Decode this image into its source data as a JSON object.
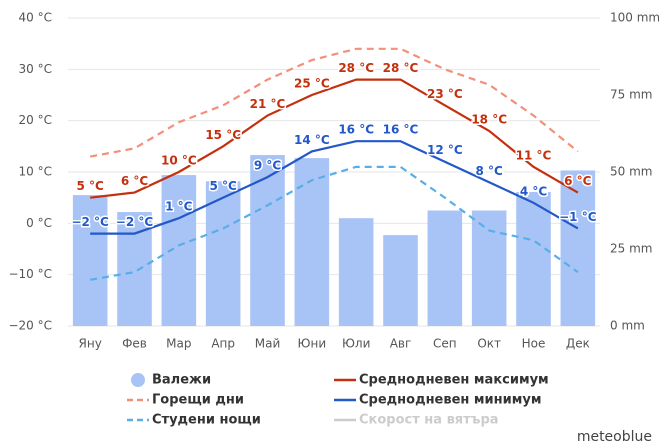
{
  "chart_data": {
    "type": "combo",
    "categories": [
      "Яну",
      "Фев",
      "Мар",
      "Апр",
      "Май",
      "Юни",
      "Юли",
      "Авг",
      "Сеп",
      "Окт",
      "Ное",
      "Дек"
    ],
    "ylim": [
      -20,
      40
    ],
    "yticks": [
      {
        "value": -20,
        "label": "−20 °C"
      },
      {
        "value": -10,
        "label": "−10 °C"
      },
      {
        "value": 0,
        "label": "0 °C"
      },
      {
        "value": 10,
        "label": "10 °C"
      },
      {
        "value": 20,
        "label": "20 °C"
      },
      {
        "value": 30,
        "label": "30 °C"
      },
      {
        "value": 40,
        "label": "40 °C"
      }
    ],
    "y2lim": [
      0,
      100
    ],
    "y2ticks": [
      {
        "value": 0,
        "label": "0 mm"
      },
      {
        "value": 25,
        "label": "25 mm"
      },
      {
        "value": 50,
        "label": "50 mm"
      },
      {
        "value": 75,
        "label": "75 mm"
      },
      {
        "value": 100,
        "label": "100 mm"
      }
    ],
    "grid": true,
    "series": [
      {
        "name": "Валежи",
        "type": "bar",
        "axis": "y2",
        "color": "#a8c3f5",
        "values": [
          42.5,
          37,
          49,
          47,
          55.5,
          54.5,
          35,
          29.5,
          37.5,
          37.5,
          43.5,
          50.5
        ]
      },
      {
        "name": "Среднодневен максимум",
        "type": "line",
        "color": "#c4300e",
        "values": [
          5,
          6,
          10,
          15,
          21,
          25,
          28,
          28,
          23,
          18,
          11,
          6
        ],
        "value_labels": [
          "5 °C",
          "6 °C",
          "10 °C",
          "15 °C",
          "21 °C",
          "25 °C",
          "28 °C",
          "28 °C",
          "23 °C",
          "18 °C",
          "11 °C",
          "6 °C"
        ]
      },
      {
        "name": "Горещи дни",
        "type": "line",
        "dashed": true,
        "color": "#f2907a",
        "values": [
          13,
          14.6,
          19.7,
          23,
          28,
          31.8,
          34,
          34,
          30,
          27,
          21,
          14
        ]
      },
      {
        "name": "Среднодневен минимум",
        "type": "line",
        "color": "#2258c8",
        "values": [
          -2,
          -2,
          1,
          5,
          9,
          14,
          16,
          16,
          12,
          8,
          4,
          -1
        ],
        "value_labels": [
          "−2 °C",
          "−2 °C",
          "1 °C",
          "5 °C",
          "9 °C",
          "14 °C",
          "16 °C",
          "16 °C",
          "12 °C",
          "8 °C",
          "4 °C",
          "−1 °C"
        ]
      },
      {
        "name": "Студени нощи",
        "type": "line",
        "dashed": true,
        "color": "#5aaee8",
        "values": [
          -11,
          -9.5,
          -4.3,
          -1,
          3.5,
          8.4,
          11,
          11,
          5,
          -1.4,
          -3.3,
          -9.5
        ]
      },
      {
        "name": "Скорост на вятъра",
        "type": "line",
        "color": "#cccccc"
      }
    ],
    "watermark": "meteoblue"
  }
}
